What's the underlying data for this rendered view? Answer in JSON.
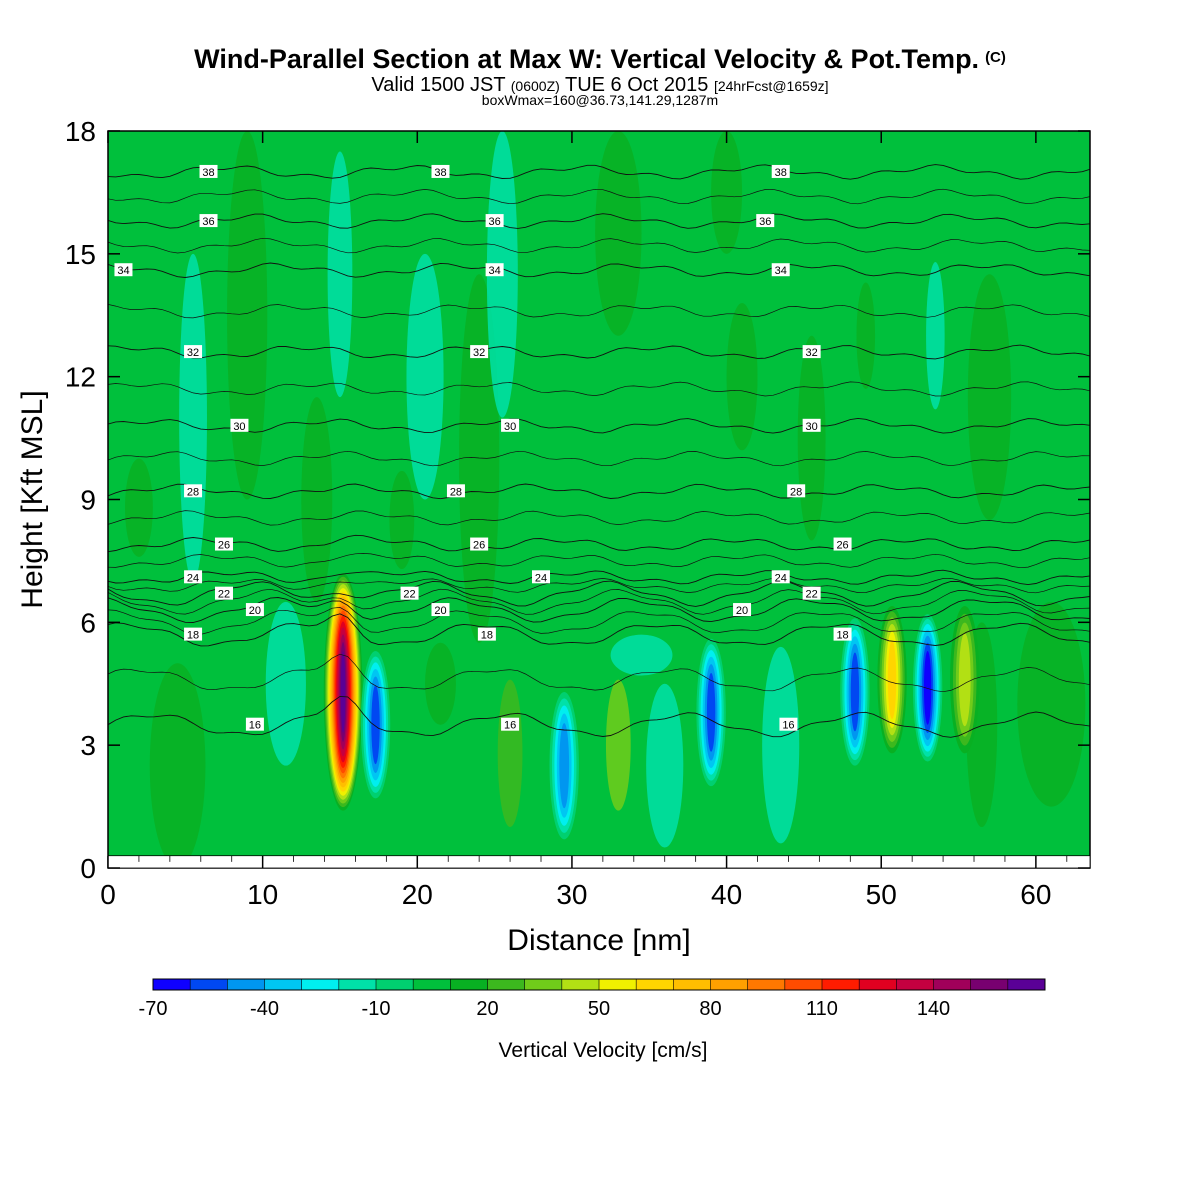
{
  "title": {
    "main": "Wind-Parallel Section at Max W: Vertical Velocity & Pot.Temp.",
    "copyright": "(C)",
    "valid_prefix": "Valid 1500 JST",
    "utc": "(0600Z)",
    "valid_date": "TUE 6 Oct 2015",
    "forecast": "[24hrFcst@1659z]",
    "box": "boxWmax=160@36.73,141.29,1287m"
  },
  "chart_data": {
    "type": "heatmap",
    "xlabel": "Distance [nm]",
    "ylabel": "Height [Kft MSL]",
    "xlim": [
      0,
      63.5
    ],
    "ylim": [
      0,
      18
    ],
    "x_ticks": [
      0,
      10,
      20,
      30,
      40,
      50,
      60
    ],
    "y_ticks": [
      0,
      3,
      6,
      9,
      12,
      15,
      18
    ],
    "fill_variable": "Vertical Velocity [cm/s]",
    "background_level_cm_s": 0,
    "colorbar": {
      "label": "Vertical Velocity [cm/s]",
      "levels": [
        -70,
        -60,
        -50,
        -40,
        -30,
        -20,
        -10,
        0,
        10,
        20,
        30,
        40,
        50,
        60,
        70,
        80,
        90,
        100,
        110,
        120,
        130,
        140,
        150,
        160
      ],
      "colors": [
        "#0f00ff",
        "#0048f2",
        "#0096f0",
        "#00c6f2",
        "#00efef",
        "#00e1a8",
        "#00d070",
        "#00c03c",
        "#08b022",
        "#3cb81e",
        "#70cc1a",
        "#b2e014",
        "#f0f000",
        "#ffd500",
        "#ffbe00",
        "#ffa000",
        "#ff7800",
        "#ff4c00",
        "#ff1c00",
        "#e00020",
        "#c40040",
        "#a0005a",
        "#780070",
        "#5a0096"
      ],
      "tick_labels": [
        "-70",
        "-40",
        "-10",
        "20",
        "50",
        "80",
        "110",
        "140"
      ]
    },
    "vertical_velocity_cells": [
      {
        "x": 15.2,
        "y": 4.3,
        "max_cm_s": 160
      },
      {
        "x": 17.3,
        "y": 3.5,
        "min_cm_s": -65
      },
      {
        "x": 29.5,
        "y": 2.5,
        "min_cm_s": -55
      },
      {
        "x": 39.0,
        "y": 3.8,
        "min_cm_s": -60
      },
      {
        "x": 48.3,
        "y": 4.3,
        "min_cm_s": -60
      },
      {
        "x": 50.7,
        "y": 4.6,
        "max_cm_s": 60
      },
      {
        "x": 53.0,
        "y": 4.4,
        "min_cm_s": -70
      },
      {
        "x": 55.4,
        "y": 4.6,
        "max_cm_s": 40
      }
    ],
    "theta_contours": [
      {
        "value": 16,
        "height_kft": 3.5,
        "labels_at_x": [
          9.5,
          26.0,
          44.0
        ]
      },
      {
        "value": 18,
        "height_kft": 5.7,
        "labels_at_x": [
          5.5,
          24.5,
          47.5
        ]
      },
      {
        "value": 20,
        "height_kft": 6.3,
        "labels_at_x": [
          9.5,
          21.5,
          41.0
        ]
      },
      {
        "value": 22,
        "height_kft": 6.7,
        "labels_at_x": [
          7.5,
          19.5,
          45.5
        ]
      },
      {
        "value": 24,
        "height_kft": 7.1,
        "labels_at_x": [
          5.5,
          28.0,
          43.5
        ]
      },
      {
        "value": 26,
        "height_kft": 7.9,
        "labels_at_x": [
          7.5,
          24.0,
          47.5
        ]
      },
      {
        "value": 28,
        "height_kft": 9.2,
        "labels_at_x": [
          5.5,
          22.5,
          44.5
        ]
      },
      {
        "value": 30,
        "height_kft": 10.8,
        "labels_at_x": [
          8.5,
          26.0,
          45.5
        ]
      },
      {
        "value": 32,
        "height_kft": 12.6,
        "labels_at_x": [
          5.5,
          24.0,
          45.5
        ]
      },
      {
        "value": 34,
        "height_kft": 14.6,
        "labels_at_x": [
          1.0,
          25.0,
          43.5
        ]
      },
      {
        "value": 36,
        "height_kft": 15.8,
        "labels_at_x": [
          6.5,
          25.0,
          42.5
        ]
      },
      {
        "value": 38,
        "height_kft": 17.0,
        "labels_at_x": [
          6.5,
          21.5,
          43.5
        ]
      }
    ]
  }
}
